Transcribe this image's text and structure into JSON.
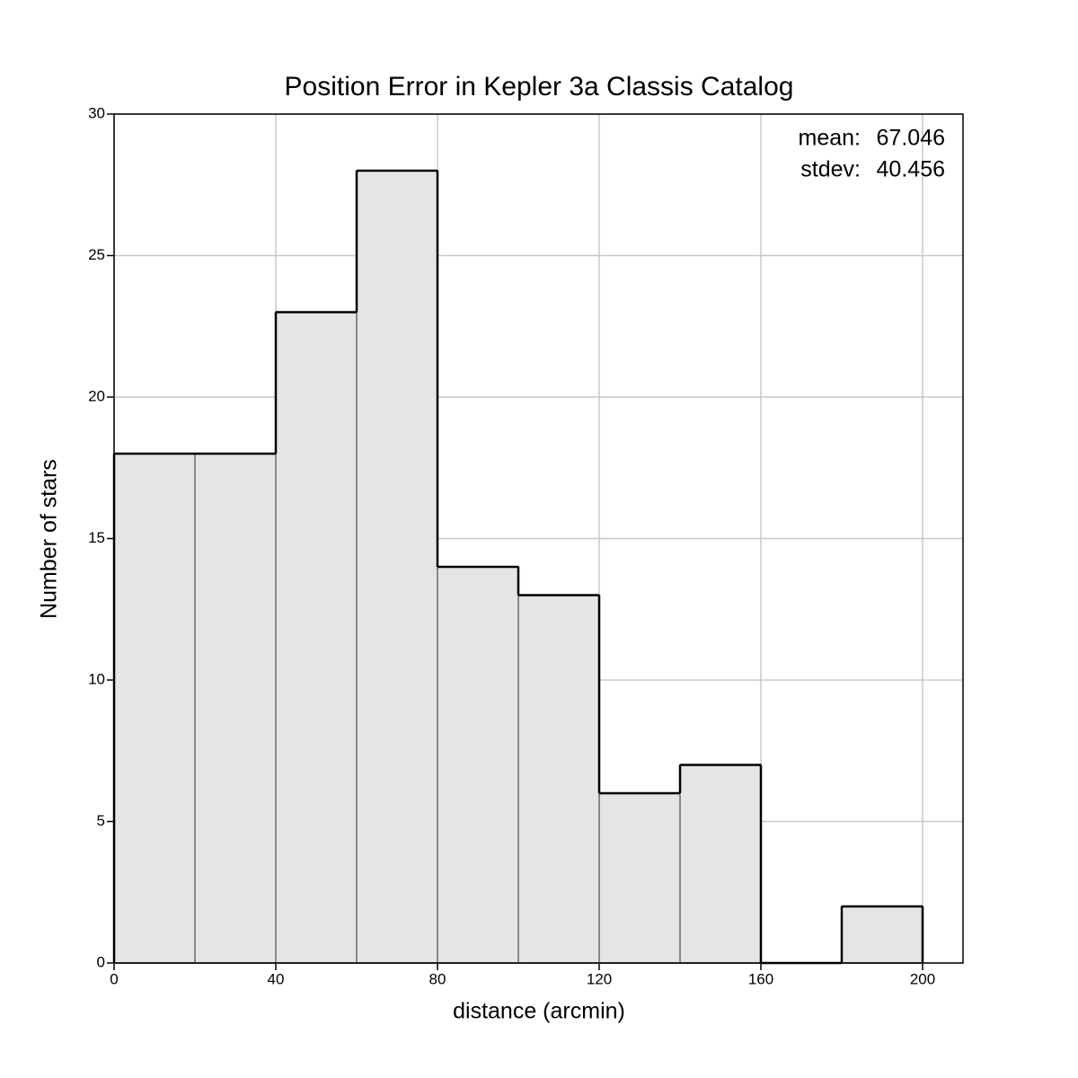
{
  "chart_data": {
    "type": "histogram",
    "title": "Position Error in Kepler 3a Classis Catalog",
    "x_label": "distance (arcmin)",
    "y_label": "Number of stars",
    "bins": [
      0,
      20,
      40,
      60,
      80,
      100,
      120,
      140,
      160,
      180,
      200
    ],
    "counts": [
      18,
      18,
      23,
      28,
      14,
      13,
      6,
      7,
      0,
      2
    ],
    "color": "#e5e5e5",
    "xlim": [
      0,
      210
    ],
    "ylim": [
      0,
      30
    ],
    "xticks": [
      0,
      40,
      80,
      120,
      160,
      200
    ],
    "yticks": [
      0,
      5,
      10,
      15,
      20,
      25,
      30
    ],
    "grid": true,
    "annotations": [
      {
        "label": "mean:",
        "value": 67.046
      },
      {
        "label": "stdev:",
        "value": 40.456
      }
    ]
  }
}
